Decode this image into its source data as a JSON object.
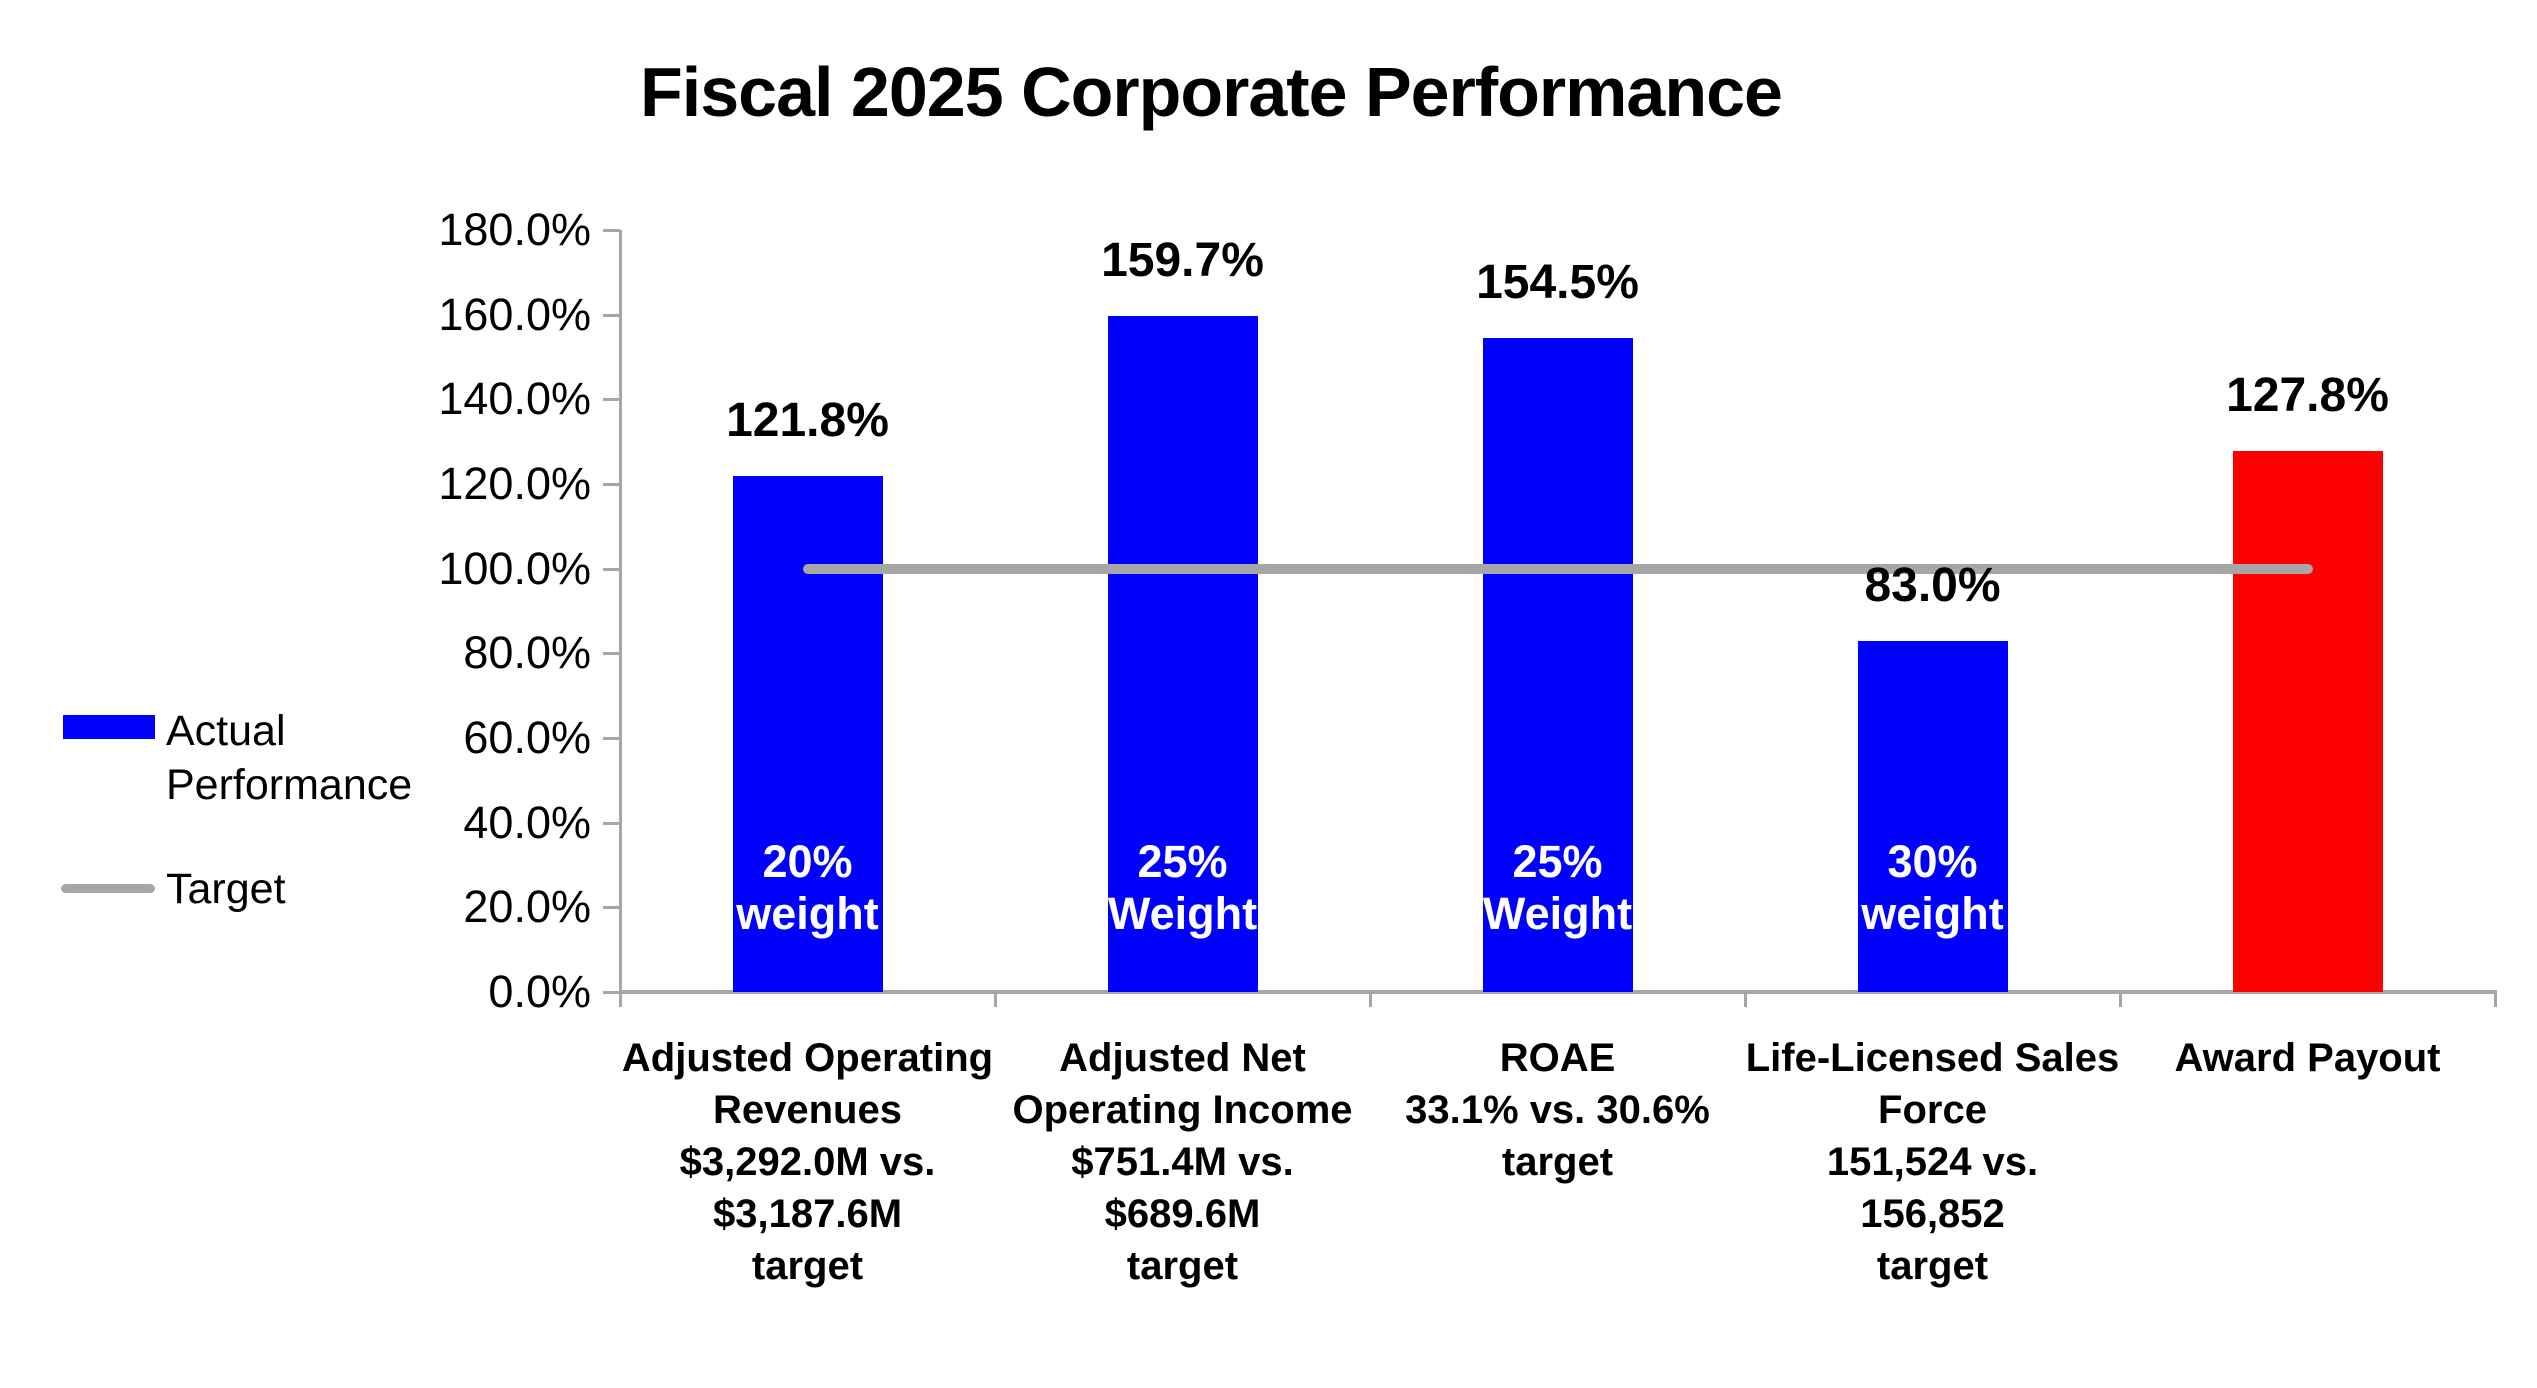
{
  "chart_data": {
    "type": "bar",
    "title": "Fiscal 2025 Corporate Performance",
    "ylim": [
      0,
      180
    ],
    "y_tick_labels": [
      "180.0%",
      "160.0%",
      "140.0%",
      "120.0%",
      "100.0%",
      "80.0%",
      "60.0%",
      "40.0%",
      "20.0%",
      "0.0%"
    ],
    "target_value": 100.0,
    "grid": "off",
    "legend_position": "left",
    "colors": {
      "actual_blue": "#0000FF",
      "payout_red": "#FF0000",
      "target_gray": "#A6A6A6",
      "axis_gray": "#A6A6A6",
      "label_black": "#000000",
      "weight_text_white": "#FFFFFF"
    },
    "legend": [
      {
        "label": "Actual Performance",
        "marker": "swatch",
        "color": "#0000FF"
      },
      {
        "label": "Target",
        "marker": "line",
        "color": "#A6A6A6"
      }
    ],
    "bars": [
      {
        "category_lines": [
          "Adjusted Operating",
          "Revenues",
          "$3,292.0M vs.",
          "$3,187.6M",
          "target"
        ],
        "value": 121.8,
        "data_label": "121.8%",
        "weight_lines": [
          "20%",
          "weight"
        ],
        "color": "#0000FF"
      },
      {
        "category_lines": [
          "Adjusted Net",
          "Operating Income",
          "$751.4M vs.",
          "$689.6M",
          "target"
        ],
        "value": 159.7,
        "data_label": "159.7%",
        "weight_lines": [
          "25%",
          "Weight"
        ],
        "color": "#0000FF"
      },
      {
        "category_lines": [
          "ROAE",
          "33.1% vs. 30.6%",
          "target"
        ],
        "value": 154.5,
        "data_label": "154.5%",
        "weight_lines": [
          "25%",
          "Weight"
        ],
        "color": "#0000FF"
      },
      {
        "category_lines": [
          "Life-Licensed Sales",
          "Force",
          "151,524 vs.",
          "156,852",
          "target"
        ],
        "value": 83.0,
        "data_label": "83.0%",
        "weight_lines": [
          "30%",
          "weight"
        ],
        "color": "#0000FF"
      },
      {
        "category_lines": [
          "Award Payout"
        ],
        "value": 127.8,
        "data_label": "127.8%",
        "weight_lines": null,
        "color": "#FF0000"
      }
    ]
  }
}
